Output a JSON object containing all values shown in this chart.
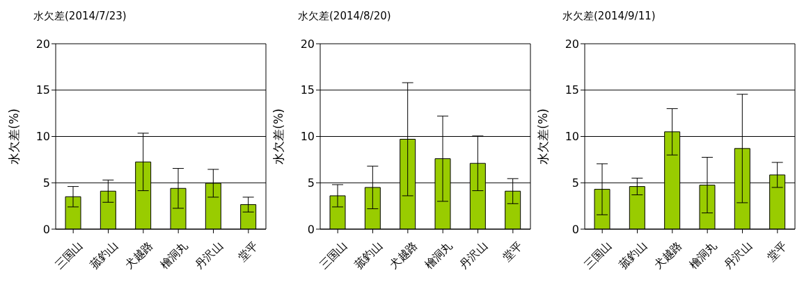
{
  "chart_data": [
    {
      "type": "bar",
      "title": "水欠差(2014/7/23)",
      "ylabel": "水欠差(%)",
      "categories": [
        "三国山",
        "菰釣山",
        "犬越路",
        "檜洞丸",
        "丹沢山",
        "堂平"
      ],
      "values": [
        3.5,
        4.1,
        7.25,
        4.4,
        4.95,
        2.65
      ],
      "errors": [
        1.1,
        1.2,
        3.1,
        2.15,
        1.5,
        0.8
      ],
      "color": "#99cc00",
      "ylim": [
        0,
        20
      ],
      "yticks": [
        0,
        5,
        10,
        15,
        20
      ],
      "grid": "y",
      "legend": false
    },
    {
      "type": "bar",
      "title": "水欠差(2014/8/20)",
      "ylabel": "水欠差(%)",
      "categories": [
        "三国山",
        "菰釣山",
        "犬越路",
        "檜洞丸",
        "丹沢山",
        "堂平"
      ],
      "values": [
        3.6,
        4.5,
        9.7,
        7.6,
        7.1,
        4.1
      ],
      "errors": [
        1.2,
        2.3,
        6.1,
        4.6,
        2.95,
        1.35
      ],
      "color": "#99cc00",
      "ylim": [
        0,
        20
      ],
      "yticks": [
        0,
        5,
        10,
        15,
        20
      ],
      "grid": "y",
      "legend": false
    },
    {
      "type": "bar",
      "title": "水欠差(2014/9/11)",
      "ylabel": "水欠差(%)",
      "categories": [
        "三国山",
        "菰釣山",
        "犬越路",
        "檜洞丸",
        "丹沢山",
        "堂平"
      ],
      "values": [
        4.3,
        4.6,
        10.5,
        4.75,
        8.7,
        5.85
      ],
      "errors": [
        2.75,
        0.9,
        2.5,
        3.0,
        5.85,
        1.35
      ],
      "color": "#99cc00",
      "ylim": [
        0,
        20
      ],
      "yticks": [
        0,
        5,
        10,
        15,
        20
      ],
      "grid": "y",
      "legend": false
    }
  ]
}
